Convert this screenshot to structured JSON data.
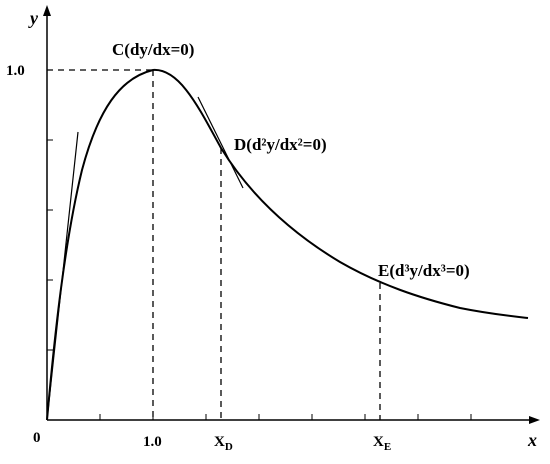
{
  "axes": {
    "y_label": "y",
    "x_label": "x",
    "origin": "0"
  },
  "ticks": {
    "y": "1.0",
    "x": "1.0"
  },
  "points": [
    {
      "label": "C(dy/dx=0)"
    },
    {
      "label": "D(d²y/dx²=0)"
    },
    {
      "label": "E(d³y/dx³=0)"
    }
  ],
  "x_markers": [
    {
      "main": "X",
      "sub": "D"
    },
    {
      "main": "X",
      "sub": "E"
    }
  ]
}
